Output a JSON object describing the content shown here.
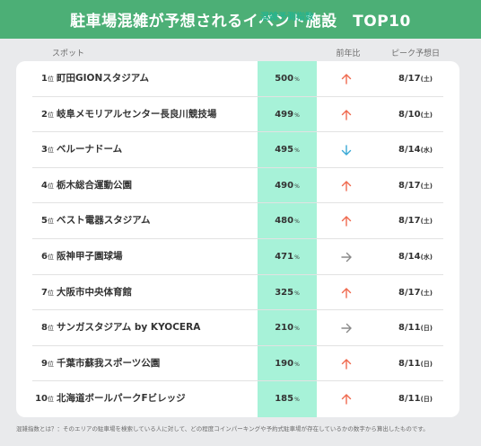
{
  "title": "駐車場混雑が予想されるイベント施設　TOP10",
  "headers": {
    "spot": "スポット",
    "score": "混雑予測指数",
    "yoy": "前年比",
    "peak": "ピーク予想日"
  },
  "rank_suffix": "位",
  "score_unit": "%",
  "colors": {
    "title_bg": "#4caf76",
    "score_column": "#a7f2d8",
    "arrow_up": "#ef6a4f",
    "arrow_down": "#3aa9d6",
    "arrow_flat": "#8a8a8a"
  },
  "chart_data": {
    "type": "table",
    "title": "駐車場混雑が予想されるイベント施設　TOP10",
    "columns": [
      "スポット",
      "混雑予測指数",
      "前年比",
      "ピーク予想日"
    ],
    "rows": [
      {
        "rank": "1",
        "venue": "町田GIONスタジアム",
        "score": "500",
        "trend": "up",
        "date": "8/17",
        "dow": "(土)"
      },
      {
        "rank": "2",
        "venue": "岐阜メモリアルセンター長良川競技場",
        "score": "499",
        "trend": "up",
        "date": "8/10",
        "dow": "(土)"
      },
      {
        "rank": "3",
        "venue": "ベルーナドーム",
        "score": "495",
        "trend": "down",
        "date": "8/14",
        "dow": "(水)"
      },
      {
        "rank": "4",
        "venue": "栃木総合運動公園",
        "score": "490",
        "trend": "up",
        "date": "8/17",
        "dow": "(土)"
      },
      {
        "rank": "5",
        "venue": "ベスト電器スタジアム",
        "score": "480",
        "trend": "up",
        "date": "8/17",
        "dow": "(土)"
      },
      {
        "rank": "6",
        "venue": "阪神甲子園球場",
        "score": "471",
        "trend": "flat",
        "date": "8/14",
        "dow": "(水)"
      },
      {
        "rank": "7",
        "venue": "大阪市中央体育館",
        "score": "325",
        "trend": "up",
        "date": "8/17",
        "dow": "(土)"
      },
      {
        "rank": "8",
        "venue": "サンガスタジアム by KYOCERA",
        "score": "210",
        "trend": "flat",
        "date": "8/11",
        "dow": "(日)"
      },
      {
        "rank": "9",
        "venue": "千葉市蘇我スポーツ公園",
        "score": "190",
        "trend": "up",
        "date": "8/11",
        "dow": "(日)"
      },
      {
        "rank": "10",
        "venue": "北海道ボールパークFビレッジ",
        "score": "185",
        "trend": "up",
        "date": "8/11",
        "dow": "(日)"
      }
    ]
  },
  "footnote": "混雑指数とは？：そのエリアの駐車場を検索している人に対して、どの程度コインパーキングや予約式駐車場が存在しているかの数字から算出したものです。"
}
